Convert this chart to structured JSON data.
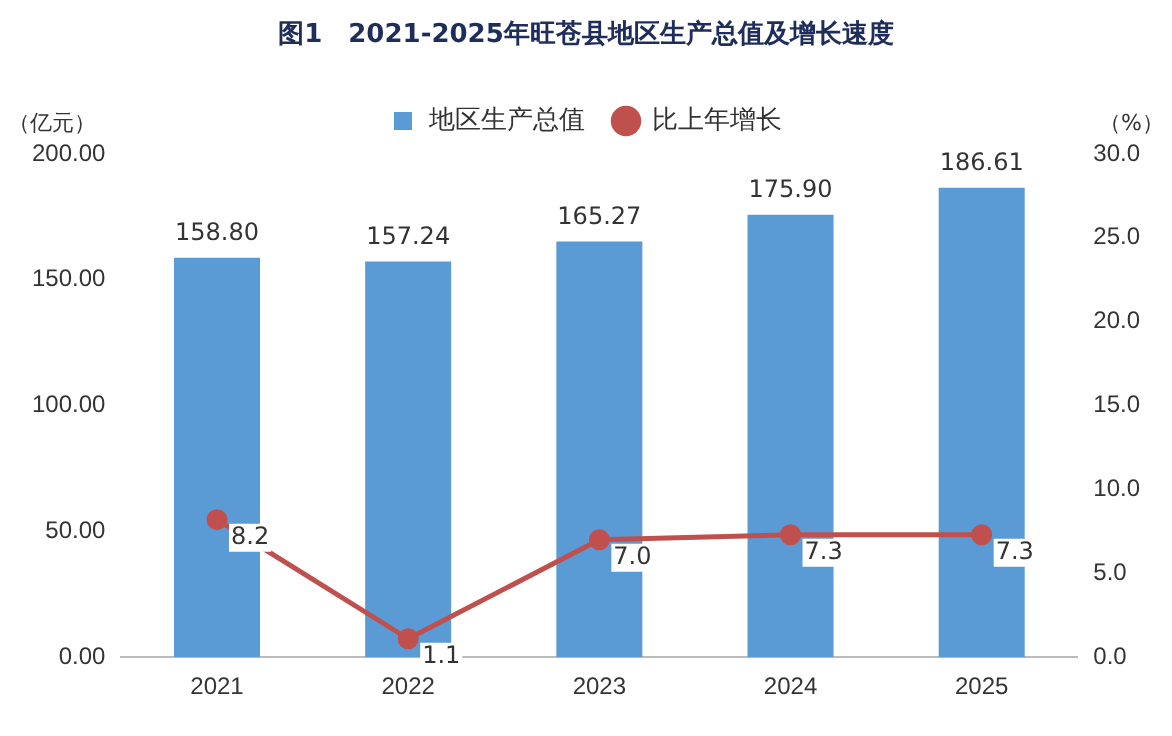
{
  "chart_data": {
    "type": "bar",
    "title": "图1　2021-2025年旺苍县地区生产总值及增长速度",
    "ylabel": "（亿元）",
    "y2label": "（%）",
    "categories": [
      "2021",
      "2022",
      "2023",
      "2024",
      "2025"
    ],
    "series": [
      {
        "name": "地区生产总值",
        "color": "#5b9bd5",
        "values": [
          158.8,
          157.24,
          165.27,
          175.9,
          186.61
        ],
        "value_labels": [
          "158.80",
          "157.24",
          "165.27",
          "175.90",
          "186.61"
        ]
      },
      {
        "name": "比上年增长",
        "type": "line",
        "axis": "y2",
        "color": "#c0504d",
        "marker": "circle",
        "line_style": "solid",
        "values": [
          8.2,
          1.1,
          7.0,
          7.3,
          7.3
        ],
        "value_labels": [
          "8.2",
          "1.1",
          "7.0",
          "7.3",
          "7.3"
        ]
      }
    ],
    "ylim": [
      0,
      200
    ],
    "yticks": [
      {
        "value": 0,
        "label": "0.00"
      },
      {
        "value": 50,
        "label": "50.00"
      },
      {
        "value": 100,
        "label": "100.00"
      },
      {
        "value": 150,
        "label": "150.00"
      },
      {
        "value": 200,
        "label": "200.00"
      }
    ],
    "y2lim": [
      0,
      30
    ],
    "y2ticks": [
      {
        "value": 0,
        "label": "0.0"
      },
      {
        "value": 5,
        "label": "5.0"
      },
      {
        "value": 10,
        "label": "10.0"
      },
      {
        "value": 15,
        "label": "15.0"
      },
      {
        "value": 20,
        "label": "20.0"
      },
      {
        "value": 25,
        "label": "25.0"
      },
      {
        "value": 30,
        "label": "30.0"
      }
    ],
    "legend": "top"
  }
}
